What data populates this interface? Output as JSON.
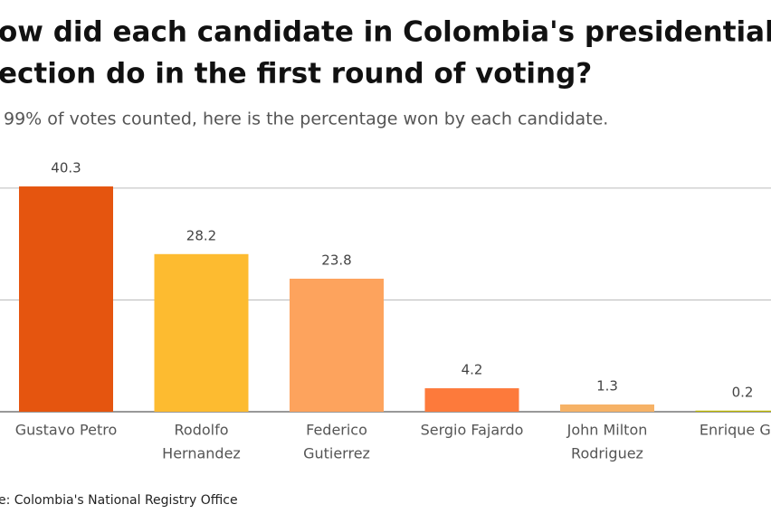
{
  "chart_data": {
    "type": "bar",
    "title_lines": [
      "ow did each candidate in Colombia's presidential",
      "ection do in the first round of voting?"
    ],
    "subtitle": "99% of votes counted, here is the percentage won by each candidate.",
    "source": "e: Colombia's National Registry Office",
    "categories": [
      [
        "Gustavo Petro"
      ],
      [
        "Rodolfo",
        "Hernandez"
      ],
      [
        "Federico",
        "Gutierrez"
      ],
      [
        "Sergio Fajardo"
      ],
      [
        "John Milton",
        "Rodriguez"
      ],
      [
        "Enrique Gor"
      ]
    ],
    "values": [
      40.3,
      28.2,
      23.8,
      4.2,
      1.3,
      0.2
    ],
    "colors": [
      "#e5550f",
      "#fdbb30",
      "#fda35d",
      "#fd7a3b",
      "#f6b266",
      "#bdb800"
    ],
    "ylim": [
      0,
      45
    ],
    "yticks": [
      0,
      20,
      40
    ],
    "grid": true
  }
}
